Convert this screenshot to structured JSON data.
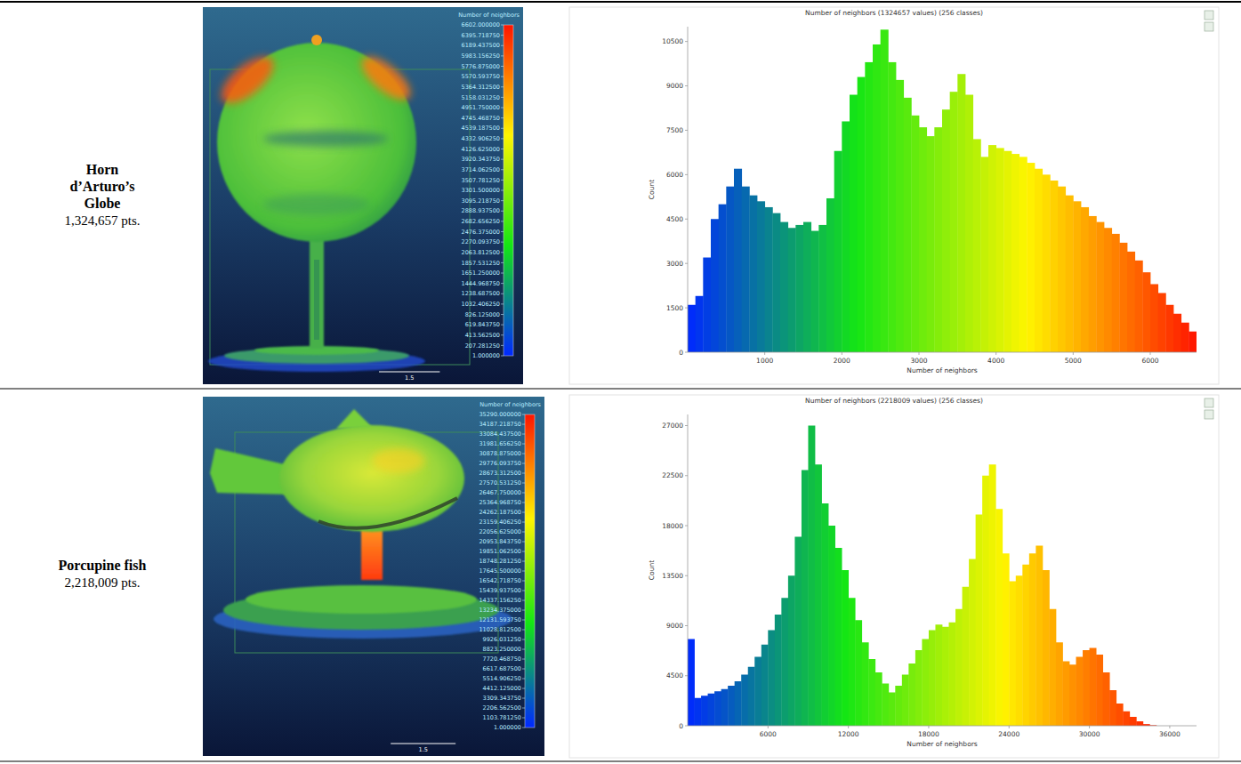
{
  "rows": [
    {
      "label": "Horn d’Arturo’s Globe",
      "points": "1,324,657 pts.",
      "point_cloud": {
        "colorbar_title": "Number of neighbors",
        "colorbar_range": [
          1,
          6602
        ],
        "scale_bar": "1.5",
        "colorbar_ticks": [
          {
            "value": 1,
            "label": "1.000000"
          },
          {
            "value": 207.28125,
            "label": "207.281250"
          },
          {
            "value": 413.5625,
            "label": "413.562500"
          },
          {
            "value": 619.84375,
            "label": "619.843750"
          },
          {
            "value": 826.125,
            "label": "826.125000"
          },
          {
            "value": 1032.40625,
            "label": "1032.406250"
          },
          {
            "value": 1238.6875,
            "label": "1238.687500"
          },
          {
            "value": 1444.96875,
            "label": "1444.968750"
          },
          {
            "value": 1651.25,
            "label": "1651.250000"
          },
          {
            "value": 1857.53125,
            "label": "1857.531250"
          },
          {
            "value": 2063.8125,
            "label": "2063.812500"
          },
          {
            "value": 2270.09375,
            "label": "2270.093750"
          },
          {
            "value": 2476.375,
            "label": "2476.375000"
          },
          {
            "value": 2682.65625,
            "label": "2682.656250"
          },
          {
            "value": 2888.9375,
            "label": "2888.937500"
          },
          {
            "value": 3095.21875,
            "label": "3095.218750"
          },
          {
            "value": 3301.5,
            "label": "3301.500000"
          },
          {
            "value": 3507.78125,
            "label": "3507.781250"
          },
          {
            "value": 3714.0625,
            "label": "3714.062500"
          },
          {
            "value": 3920.34375,
            "label": "3920.343750"
          },
          {
            "value": 4126.625,
            "label": "4126.625000"
          },
          {
            "value": 4332.90625,
            "label": "4332.906250"
          },
          {
            "value": 4539.1875,
            "label": "4539.187500"
          },
          {
            "value": 4745.46875,
            "label": "4745.468750"
          },
          {
            "value": 4951.75,
            "label": "4951.750000"
          },
          {
            "value": 5158.03125,
            "label": "5158.031250"
          },
          {
            "value": 5364.3125,
            "label": "5364.312500"
          },
          {
            "value": 5570.59375,
            "label": "5570.593750"
          },
          {
            "value": 5776.875,
            "label": "5776.875000"
          },
          {
            "value": 5983.15625,
            "label": "5983.156250"
          },
          {
            "value": 6189.4375,
            "label": "6189.437500"
          },
          {
            "value": 6395.71875,
            "label": "6395.718750"
          },
          {
            "value": 6602,
            "label": "6602.000000"
          }
        ]
      }
    },
    {
      "label": "Porcupine fish",
      "points": "2,218,009 pts.",
      "point_cloud": {
        "colorbar_title": "Number of neighbors",
        "colorbar_range": [
          1,
          35290
        ],
        "scale_bar": "1.5",
        "colorbar_ticks": [
          {
            "value": 1,
            "label": "1.000000"
          },
          {
            "value": 1103.78125,
            "label": "1103.781250"
          },
          {
            "value": 2206.5625,
            "label": "2206.562500"
          },
          {
            "value": 3309.34375,
            "label": "3309.343750"
          },
          {
            "value": 4412.125,
            "label": "4412.125000"
          },
          {
            "value": 5514.90625,
            "label": "5514.906250"
          },
          {
            "value": 6617.6875,
            "label": "6617.687500"
          },
          {
            "value": 7720.46875,
            "label": "7720.468750"
          },
          {
            "value": 8823.25,
            "label": "8823.250000"
          },
          {
            "value": 9926.03125,
            "label": "9926.031250"
          },
          {
            "value": 11028.8125,
            "label": "11028.812500"
          },
          {
            "value": 12131.59375,
            "label": "12131.593750"
          },
          {
            "value": 13234.375,
            "label": "13234.375000"
          },
          {
            "value": 14337.15625,
            "label": "14337.156250"
          },
          {
            "value": 15439.9375,
            "label": "15439.937500"
          },
          {
            "value": 16542.71875,
            "label": "16542.718750"
          },
          {
            "value": 17645.5,
            "label": "17645.500000"
          },
          {
            "value": 18748.28125,
            "label": "18748.281250"
          },
          {
            "value": 19851.0625,
            "label": "19851.062500"
          },
          {
            "value": 20953.84375,
            "label": "20953.843750"
          },
          {
            "value": 22056.625,
            "label": "22056.625000"
          },
          {
            "value": 23159.40625,
            "label": "23159.406250"
          },
          {
            "value": 24262.1875,
            "label": "24262.187500"
          },
          {
            "value": 25364.96875,
            "label": "25364.968750"
          },
          {
            "value": 26467.75,
            "label": "26467.750000"
          },
          {
            "value": 27570.53125,
            "label": "27570.531250"
          },
          {
            "value": 28673.3125,
            "label": "28673.312500"
          },
          {
            "value": 29776.09375,
            "label": "29776.093750"
          },
          {
            "value": 30878.875,
            "label": "30878.875000"
          },
          {
            "value": 31981.65625,
            "label": "31981.656250"
          },
          {
            "value": 33084.4375,
            "label": "33084.437500"
          },
          {
            "value": 34187.21875,
            "label": "34187.218750"
          },
          {
            "value": 35290,
            "label": "35290.000000"
          }
        ]
      }
    }
  ],
  "chart_data": [
    {
      "type": "histogram",
      "title": "Number of neighbors (1324657 values) (256 classes)",
      "x_label": "Number of neighbors",
      "y_label": "Count",
      "bins": [
        0,
        100,
        200,
        300,
        400,
        500,
        600,
        700,
        800,
        900,
        1000,
        1100,
        1200,
        1300,
        1400,
        1500,
        1600,
        1700,
        1800,
        1900,
        2000,
        2100,
        2200,
        2300,
        2400,
        2500,
        2600,
        2700,
        2800,
        2900,
        3000,
        3100,
        3200,
        3300,
        3400,
        3500,
        3600,
        3700,
        3800,
        3900,
        4000,
        4100,
        4200,
        4300,
        4400,
        4500,
        4600,
        4700,
        4800,
        4900,
        5000,
        5100,
        5200,
        5300,
        5400,
        5500,
        5600,
        5700,
        5800,
        5900,
        6000,
        6100,
        6200,
        6300,
        6400,
        6500,
        6600
      ],
      "counts": [
        1600,
        1900,
        3200,
        4500,
        5000,
        5600,
        6200,
        5600,
        5300,
        5100,
        4900,
        4700,
        4400,
        4200,
        4300,
        4400,
        4100,
        4300,
        5200,
        6800,
        7800,
        8700,
        9300,
        9800,
        10400,
        10900,
        9800,
        9200,
        8600,
        8000,
        7600,
        7300,
        7600,
        8200,
        8800,
        9400,
        8700,
        7200,
        6600,
        7000,
        6900,
        6800,
        6700,
        6600,
        6400,
        6200,
        6000,
        5800,
        5600,
        5300,
        5100,
        4900,
        4600,
        4400,
        4200,
        4000,
        3700,
        3400,
        3100,
        2700,
        2300,
        2000,
        1600,
        1300,
        1000,
        700
      ],
      "xlim": [
        0,
        6600
      ],
      "ylim": [
        0,
        11000
      ],
      "xticks": [
        1000,
        2000,
        3000,
        4000,
        5000,
        6000
      ],
      "yticks": [
        0,
        1500,
        3000,
        4500,
        6000,
        7500,
        9000,
        10500
      ],
      "grid": false
    },
    {
      "type": "histogram",
      "title": "Number of neighbors (2218009 values) (256 classes)",
      "x_label": "Number of neighbors",
      "y_label": "Count",
      "bins": [
        0,
        500,
        1000,
        1500,
        2000,
        2500,
        3000,
        3500,
        4000,
        4500,
        5000,
        5500,
        6000,
        6500,
        7000,
        7500,
        8000,
        8500,
        9000,
        9500,
        10000,
        10500,
        11000,
        11500,
        12000,
        12500,
        13000,
        13500,
        14000,
        14500,
        15000,
        15500,
        16000,
        16500,
        17000,
        17500,
        18000,
        18500,
        19000,
        19500,
        20000,
        20500,
        21000,
        21500,
        22000,
        22500,
        23000,
        23500,
        24000,
        24500,
        25000,
        25500,
        26000,
        26500,
        27000,
        27500,
        28000,
        28500,
        29000,
        29500,
        30000,
        30500,
        31000,
        31500,
        32000,
        32500,
        33000,
        33500,
        34000,
        34500,
        35000
      ],
      "counts": [
        7800,
        2500,
        2700,
        2900,
        3100,
        3300,
        3600,
        4000,
        4600,
        5300,
        6200,
        7300,
        8600,
        10000,
        11500,
        13500,
        17000,
        23000,
        27000,
        23500,
        20000,
        18000,
        16000,
        14000,
        11500,
        9500,
        7500,
        6000,
        4800,
        3800,
        3000,
        3600,
        4600,
        5600,
        6800,
        7800,
        8600,
        9100,
        8900,
        9300,
        10500,
        12500,
        15000,
        19000,
        22500,
        23500,
        19500,
        15500,
        13000,
        13500,
        14500,
        15500,
        16200,
        14000,
        10500,
        7500,
        5800,
        5500,
        6200,
        6800,
        7000,
        6400,
        4800,
        3200,
        2000,
        1300,
        800,
        400,
        150,
        50
      ],
      "xlim": [
        0,
        38000
      ],
      "ylim": [
        0,
        28000
      ],
      "xticks": [
        6000,
        12000,
        18000,
        24000,
        30000,
        36000
      ],
      "yticks": [
        0,
        4500,
        9000,
        13500,
        18000,
        22500,
        27000
      ],
      "grid": false
    }
  ]
}
